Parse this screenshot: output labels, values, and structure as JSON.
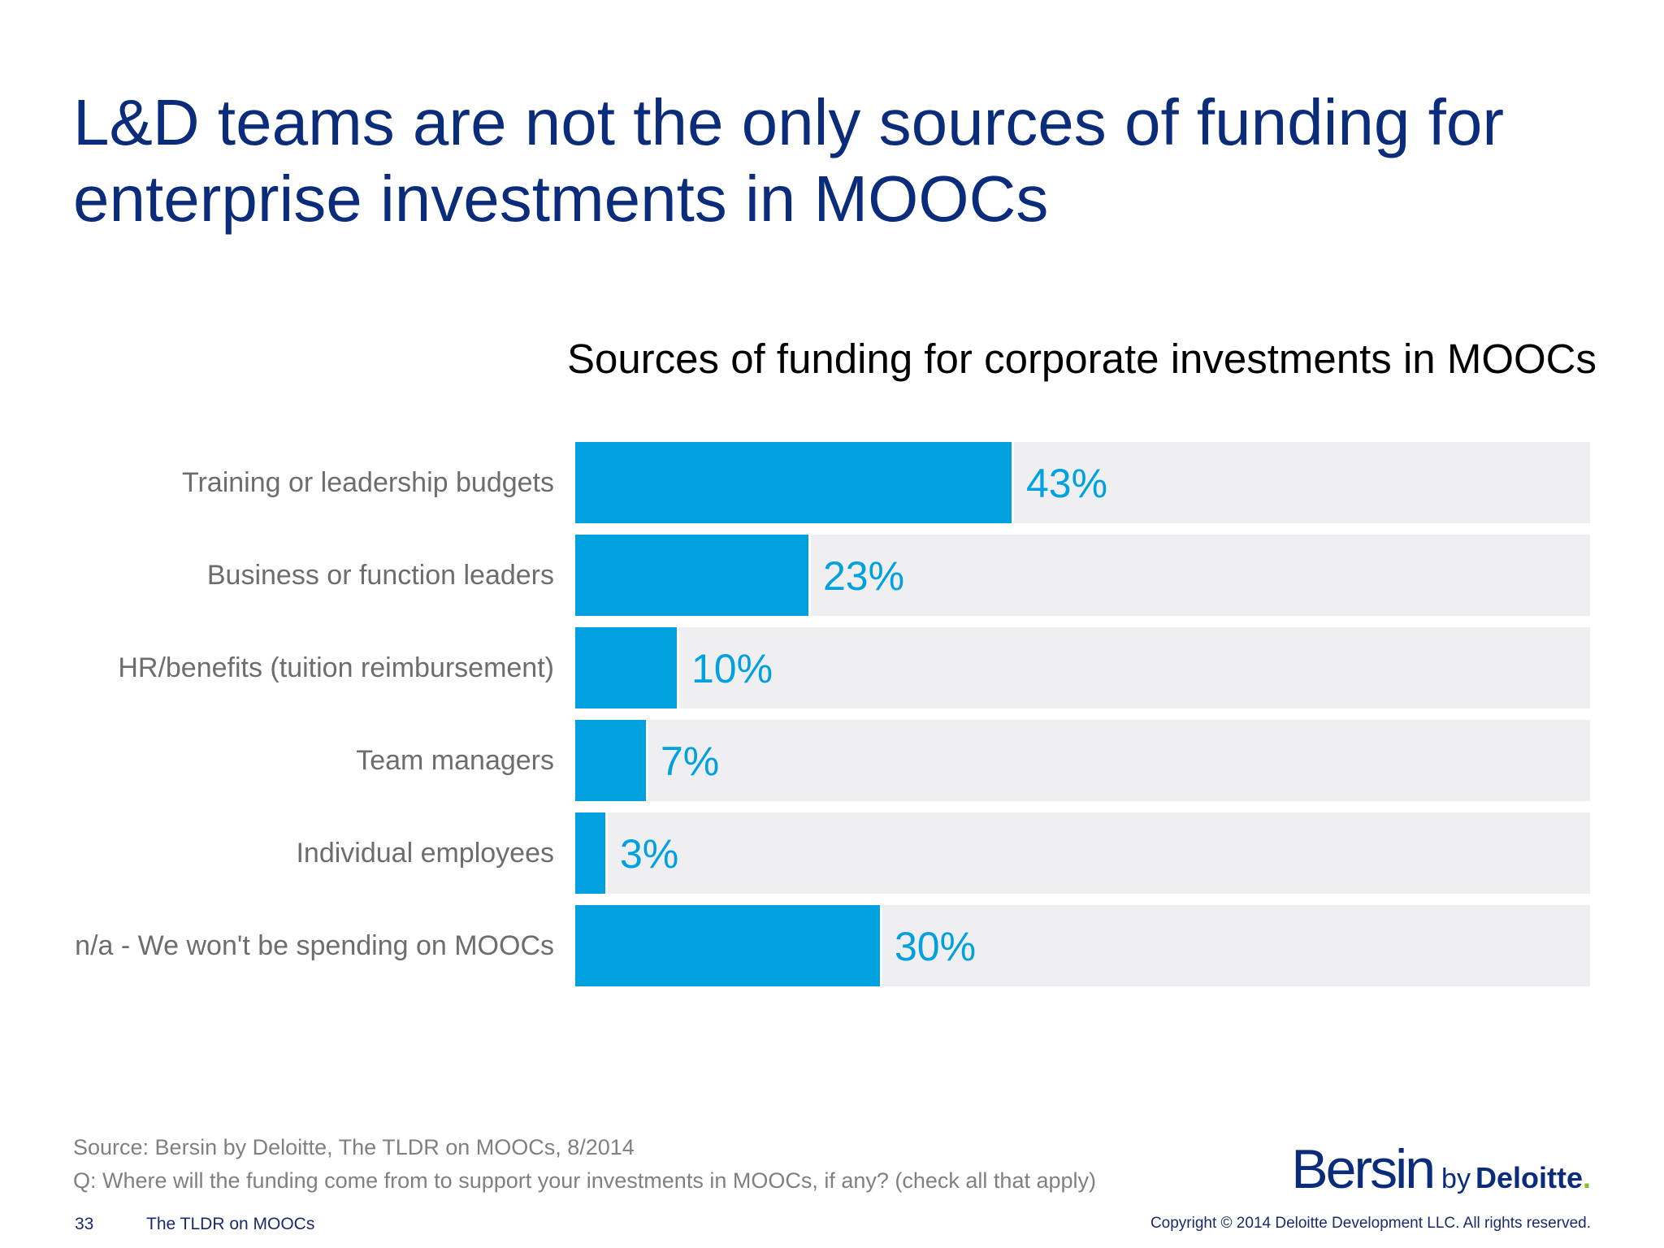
{
  "slide": {
    "title": "L&D teams are not the only sources of funding for enterprise investments in MOOCs",
    "page_number": "33",
    "footer_title": "The TLDR on MOOCs",
    "copyright": "Copyright © 2014 Deloitte Development LLC. All rights reserved."
  },
  "footnotes": {
    "source": "Source: Bersin by Deloitte, The TLDR on MOOCs, 8/2014",
    "question": "Q: Where will the funding come from to support your investments in MOOCs, if any? (check all that apply)"
  },
  "logo": {
    "brand": "Bersin",
    "by": "by",
    "company": "Deloitte",
    "dot": "."
  },
  "colors": {
    "title": "#0a2c7a",
    "bar": "#00a1de",
    "track": "#efeff2",
    "label": "#6d6d6d",
    "logo_dot": "#86bc25"
  },
  "chart_data": {
    "type": "bar",
    "orientation": "horizontal",
    "title": "Sources of funding for corporate investments in MOOCs",
    "categories": [
      "Training or leadership budgets",
      "Business or function leaders",
      "HR/benefits (tuition reimbursement)",
      "Team managers",
      "Individual employees",
      "n/a - We won't be spending on MOOCs"
    ],
    "values": [
      43,
      23,
      10,
      7,
      3,
      30
    ],
    "value_labels": [
      "43%",
      "23%",
      "10%",
      "7%",
      "3%",
      "30%"
    ],
    "unit": "%",
    "xlim": [
      0,
      100
    ],
    "grid": false,
    "legend": "none"
  }
}
